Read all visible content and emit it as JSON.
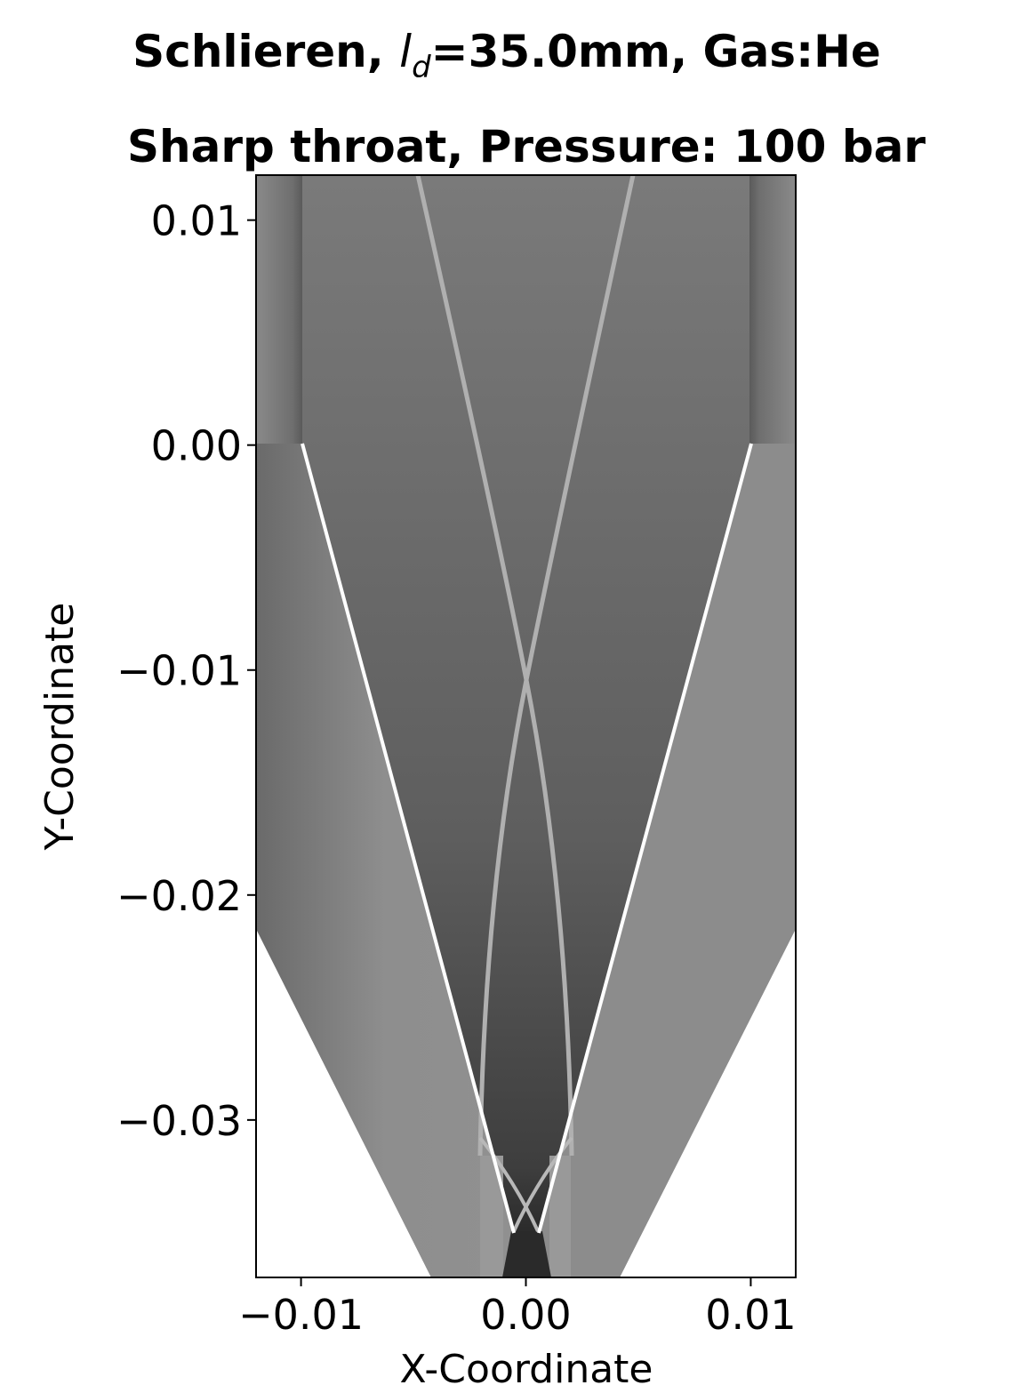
{
  "chart_data": {
    "type": "image",
    "title": [
      "Schlieren, ",
      "l",
      "d",
      "=35.0mm, Gas:He"
    ],
    "subtitle": "Sharp throat, Pressure: 100 bar",
    "x_label": "X-Coordinate",
    "y_label": "Y-Coordinate",
    "xlim": [
      -0.012,
      0.012
    ],
    "ylim": [
      -0.037,
      0.012
    ],
    "xticks": [
      {
        "value": -0.01,
        "label": "−0.01"
      },
      {
        "value": 0,
        "label": "0.00"
      },
      0.01
    ],
    "yticks": [
      0.01,
      {
        "value": 0,
        "label": "0.00"
      },
      {
        "value": -0.01,
        "label": "−0.01"
      },
      {
        "value": -0.02,
        "label": "−0.02"
      },
      {
        "value": -0.03,
        "label": "−0.03"
      }
    ]
  }
}
